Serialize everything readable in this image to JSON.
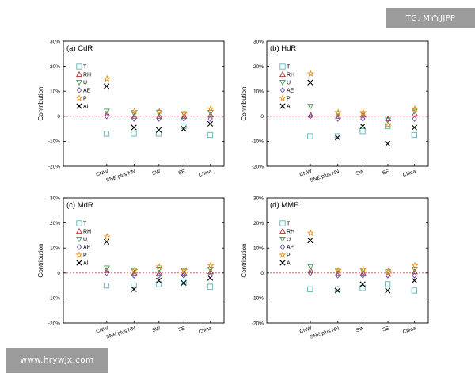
{
  "watermarks": {
    "top_right": "TG: MYYJJPP",
    "bottom_left": "www.hrywjx.com"
  },
  "colors": {
    "T": "#5fb3b8",
    "RH": "#b83030",
    "U": "#3e9b52",
    "AE": "#6b4f9e",
    "P": "#e0911e",
    "AI": "#000000",
    "zero_line": "#c44d4d"
  },
  "chart_data": [
    {
      "type": "scatter",
      "title": "(a) CdR",
      "ylabel": "Contribution",
      "yticks": [
        "30%",
        "20%",
        "10%",
        "0",
        "-10%",
        "-20%"
      ],
      "ylim": [
        -20,
        30
      ],
      "categories": [
        "CNW",
        "SNE plus NN",
        "SW",
        "SE",
        "China"
      ],
      "legend": [
        "T",
        "RH",
        "U",
        "AE",
        "P",
        "AI"
      ],
      "series": [
        {
          "name": "T",
          "values": [
            -7,
            -7,
            -7,
            -4,
            -7.5
          ]
        },
        {
          "name": "RH",
          "values": [
            1,
            0,
            0,
            0,
            0.5
          ]
        },
        {
          "name": "U",
          "values": [
            2,
            1,
            1.5,
            1,
            1.5
          ]
        },
        {
          "name": "AE",
          "values": [
            0,
            -1,
            -1,
            -1,
            -1
          ]
        },
        {
          "name": "P",
          "values": [
            15,
            2,
            2,
            1,
            3
          ]
        },
        {
          "name": "AI",
          "values": [
            12,
            -4.5,
            -5.5,
            -5,
            -3
          ]
        }
      ]
    },
    {
      "type": "scatter",
      "title": "(b) HdR",
      "ylabel": "Contribution",
      "yticks": [
        "30%",
        "20%",
        "10%",
        "0",
        "-10%",
        "-20%"
      ],
      "ylim": [
        -20,
        30
      ],
      "categories": [
        "CNW",
        "SNE plus NN",
        "SW",
        "SE",
        "China"
      ],
      "legend": [
        "T",
        "RH",
        "U",
        "AE",
        "P",
        "AI"
      ],
      "series": [
        {
          "name": "T",
          "values": [
            -8,
            -8,
            -6,
            -4,
            -7.5
          ]
        },
        {
          "name": "RH",
          "values": [
            0.5,
            0,
            0.5,
            -1,
            1
          ]
        },
        {
          "name": "U",
          "values": [
            4,
            1,
            1,
            -1.5,
            2
          ]
        },
        {
          "name": "AE",
          "values": [
            0,
            -1,
            -1,
            -1.5,
            -1
          ]
        },
        {
          "name": "P",
          "values": [
            17,
            1.5,
            1.5,
            -3.5,
            3
          ]
        },
        {
          "name": "AI",
          "values": [
            13.5,
            -8.5,
            -4,
            -11,
            -4.5
          ]
        }
      ]
    },
    {
      "type": "scatter",
      "title": "(c) MdR",
      "ylabel": "Contribution",
      "yticks": [
        "30%",
        "20%",
        "10%",
        "0",
        "-10%",
        "-20%"
      ],
      "ylim": [
        -20,
        30
      ],
      "categories": [
        "CNW",
        "SNE plus NN",
        "SW",
        "SE",
        "China"
      ],
      "legend": [
        "T",
        "RH",
        "U",
        "AE",
        "P",
        "AI"
      ],
      "series": [
        {
          "name": "T",
          "values": [
            -5,
            -5,
            -4.5,
            -3.5,
            -5.5
          ]
        },
        {
          "name": "RH",
          "values": [
            1,
            0,
            0,
            0,
            0.5
          ]
        },
        {
          "name": "U",
          "values": [
            2,
            1,
            1.5,
            1,
            1.5
          ]
        },
        {
          "name": "AE",
          "values": [
            0,
            -1,
            -1,
            -1,
            -1
          ]
        },
        {
          "name": "P",
          "values": [
            14.5,
            1,
            2.5,
            1,
            3
          ]
        },
        {
          "name": "AI",
          "values": [
            12.5,
            -6.5,
            -3,
            -4,
            -2
          ]
        }
      ]
    },
    {
      "type": "scatter",
      "title": "(d) MME",
      "ylabel": "Contribution",
      "yticks": [
        "30%",
        "20%",
        "10%",
        "0",
        "-10%",
        "-20%"
      ],
      "ylim": [
        -20,
        30
      ],
      "categories": [
        "CNW",
        "SNE plus NN",
        "SW",
        "SE",
        "China"
      ],
      "legend": [
        "T",
        "RH",
        "U",
        "AE",
        "P",
        "AI"
      ],
      "series": [
        {
          "name": "T",
          "values": [
            -6.5,
            -6.5,
            -6,
            -4.5,
            -7
          ]
        },
        {
          "name": "RH",
          "values": [
            1,
            0,
            0,
            -0.5,
            0.5
          ]
        },
        {
          "name": "U",
          "values": [
            2.5,
            1,
            1,
            0.5,
            1.5
          ]
        },
        {
          "name": "AE",
          "values": [
            0,
            -1,
            -1,
            -1,
            -1
          ]
        },
        {
          "name": "P",
          "values": [
            16,
            1,
            1.5,
            0.5,
            3
          ]
        },
        {
          "name": "AI",
          "values": [
            13,
            -7,
            -4.5,
            -7,
            -3
          ]
        }
      ]
    }
  ]
}
